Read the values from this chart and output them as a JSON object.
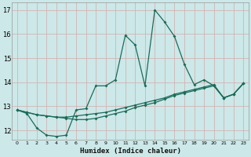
{
  "xlabel": "Humidex (Indice chaleur)",
  "bg_color": "#cce8e8",
  "grid_color": "#b0c8c8",
  "line_color": "#1a6b5a",
  "xlim": [
    -0.5,
    23.5
  ],
  "ylim": [
    11.6,
    17.3
  ],
  "xticks": [
    0,
    1,
    2,
    3,
    4,
    5,
    6,
    7,
    8,
    9,
    10,
    11,
    12,
    13,
    14,
    15,
    16,
    17,
    18,
    19,
    20,
    21,
    22,
    23
  ],
  "yticks": [
    12,
    13,
    14,
    15,
    16,
    17
  ],
  "main_x": [
    0,
    1,
    2,
    3,
    4,
    5,
    6,
    7,
    8,
    9,
    10,
    11,
    12,
    13,
    14,
    15,
    16,
    17,
    18,
    19,
    20,
    21,
    22,
    23
  ],
  "main_y": [
    12.85,
    12.7,
    12.1,
    11.8,
    11.75,
    11.8,
    12.85,
    12.9,
    13.85,
    13.85,
    14.1,
    15.95,
    15.55,
    13.85,
    17.0,
    16.5,
    15.9,
    14.75,
    13.9,
    14.1,
    13.85,
    13.35,
    13.5,
    13.95
  ],
  "line2_x": [
    0,
    1,
    2,
    3,
    4,
    5,
    6,
    7,
    8,
    9,
    10,
    11,
    12,
    13,
    14,
    15,
    16,
    17,
    18,
    19,
    20,
    21,
    22,
    23
  ],
  "line2_y": [
    12.85,
    12.75,
    12.65,
    12.6,
    12.55,
    12.55,
    12.6,
    12.65,
    12.7,
    12.75,
    12.85,
    12.95,
    13.05,
    13.15,
    13.25,
    13.35,
    13.5,
    13.6,
    13.7,
    13.8,
    13.9,
    13.35,
    13.5,
    13.95
  ],
  "line3_x": [
    0,
    1,
    2,
    3,
    4,
    5,
    6,
    7,
    8,
    9,
    10,
    11,
    12,
    13,
    14,
    15,
    16,
    17,
    18,
    19,
    20,
    21,
    22,
    23
  ],
  "line3_y": [
    12.85,
    12.75,
    12.65,
    12.6,
    12.55,
    12.5,
    12.45,
    12.45,
    12.5,
    12.6,
    12.7,
    12.8,
    12.95,
    13.05,
    13.15,
    13.3,
    13.45,
    13.55,
    13.65,
    13.75,
    13.85,
    13.35,
    13.5,
    13.95
  ]
}
